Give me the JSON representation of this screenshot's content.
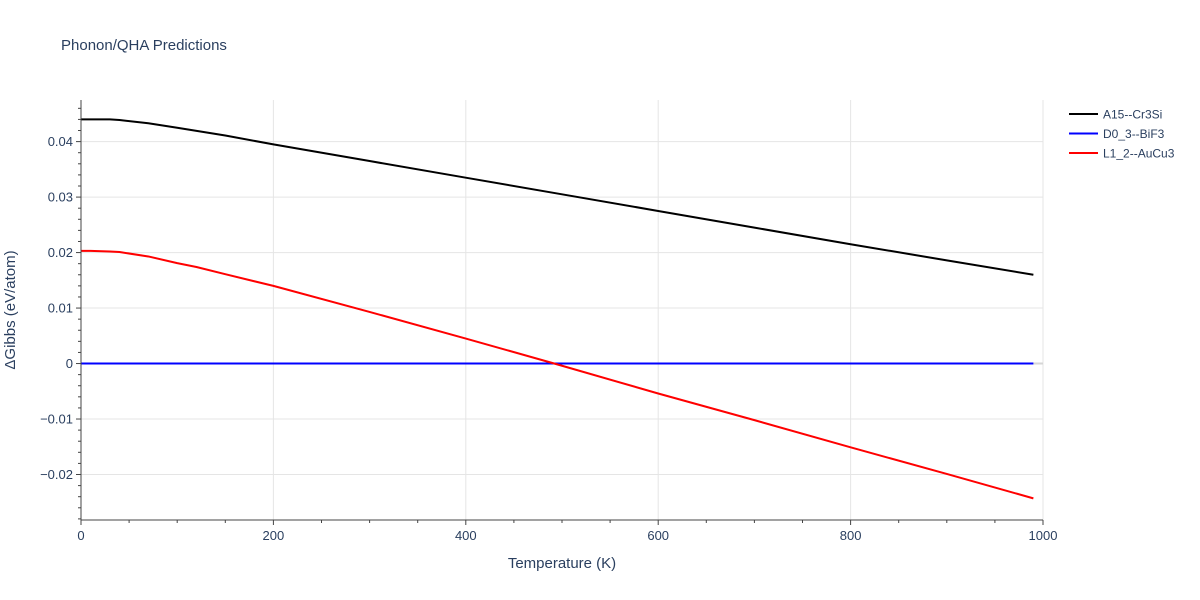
{
  "chart_data": {
    "type": "line",
    "title": "Phonon/QHA Predictions",
    "xlabel": "Temperature (K)",
    "ylabel": "ΔGibbs (eV/atom)",
    "xlim": [
      0,
      1000
    ],
    "ylim": [
      -0.0282,
      0.0475
    ],
    "xticks": [
      0,
      200,
      400,
      600,
      800,
      1000
    ],
    "xtick_labels": [
      "0",
      "200",
      "400",
      "600",
      "800",
      "1000"
    ],
    "yticks": [
      -0.02,
      -0.01,
      0,
      0.01,
      0.02,
      0.03,
      0.04
    ],
    "ytick_labels": [
      "−0.02",
      "−0.01",
      "0",
      "0.01",
      "0.02",
      "0.03",
      "0.04"
    ],
    "grid": true,
    "legend_position": "top-right",
    "series": [
      {
        "name": "A15--Cr3Si",
        "color": "#000000",
        "x": [
          0,
          10,
          30,
          40,
          70,
          100,
          150,
          200,
          300,
          400,
          500,
          600,
          700,
          800,
          900,
          990
        ],
        "y": [
          0.044,
          0.044,
          0.044,
          0.0439,
          0.0433,
          0.0425,
          0.0411,
          0.0395,
          0.0365,
          0.0335,
          0.0305,
          0.0275,
          0.0245,
          0.0215,
          0.0186,
          0.016
        ]
      },
      {
        "name": "D0_3--BiF3",
        "color": "#0000ff",
        "x": [
          0,
          990
        ],
        "y": [
          0,
          0
        ]
      },
      {
        "name": "L1_2--AuCu3",
        "color": "#ff0000",
        "x": [
          0,
          10,
          30,
          40,
          70,
          100,
          120,
          150,
          200,
          300,
          400,
          490,
          500,
          600,
          700,
          800,
          900,
          990
        ],
        "y": [
          0.0203,
          0.0203,
          0.0202,
          0.0201,
          0.0193,
          0.0181,
          0.0174,
          0.0161,
          0.014,
          0.0093,
          0.0045,
          0.0001,
          -0.0004,
          -0.0054,
          -0.0102,
          -0.0151,
          -0.0199,
          -0.0243
        ]
      }
    ]
  }
}
